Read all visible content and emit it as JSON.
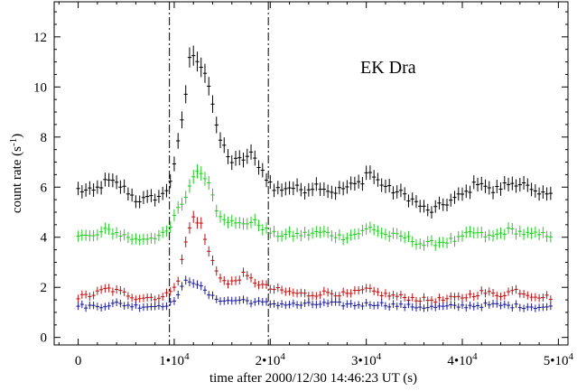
{
  "chart_data": {
    "type": "scatter",
    "title": "EK Dra",
    "xlabel": "time after 2000/12/30 14:46:23 UT (s)",
    "ylabel": "count rate (s",
    "ylabel_sup": "-1",
    "ylabel_close": ")",
    "xlim": [
      -2500,
      51000
    ],
    "ylim": [
      -0.3,
      13.4
    ],
    "x_ticks": [
      0,
      10000,
      20000,
      30000,
      40000,
      50000
    ],
    "x_tick_labels": [
      {
        "base": "0",
        "sup": ""
      },
      {
        "base": "1•10",
        "sup": "4"
      },
      {
        "base": "2•10",
        "sup": "4"
      },
      {
        "base": "3•10",
        "sup": "4"
      },
      {
        "base": "4•10",
        "sup": "4"
      },
      {
        "base": "5•10",
        "sup": "4"
      }
    ],
    "y_ticks": [
      0,
      2,
      4,
      6,
      8,
      10,
      12
    ],
    "y_tick_labels": [
      "0",
      "2",
      "4",
      "6",
      "8",
      "10",
      "12"
    ],
    "vlines": [
      9500,
      19800
    ],
    "x_step": 400,
    "x_start": 0,
    "x_end": 49200,
    "colors": {
      "total": "#000000",
      "medium": "#22cc22",
      "soft": "#bb1111",
      "hard": "#1a1a99"
    },
    "series": [
      {
        "key": "total",
        "keypoints": [
          [
            0,
            5.9
          ],
          [
            1500,
            5.8
          ],
          [
            3000,
            6.25
          ],
          [
            4200,
            6.1
          ],
          [
            5000,
            5.9
          ],
          [
            6000,
            5.5
          ],
          [
            7000,
            5.5
          ],
          [
            8000,
            5.6
          ],
          [
            9000,
            5.7
          ],
          [
            9600,
            6.3
          ],
          [
            10200,
            7.3
          ],
          [
            11000,
            9.0
          ],
          [
            11600,
            11.2
          ],
          [
            12500,
            11.1
          ],
          [
            13200,
            10.6
          ],
          [
            13800,
            9.8
          ],
          [
            14500,
            8.1
          ],
          [
            15200,
            7.6
          ],
          [
            16000,
            7.0
          ],
          [
            17000,
            7.1
          ],
          [
            18000,
            7.3
          ],
          [
            18800,
            6.9
          ],
          [
            19600,
            6.4
          ],
          [
            20400,
            5.9
          ],
          [
            22000,
            6.0
          ],
          [
            23500,
            5.9
          ],
          [
            25000,
            6.1
          ],
          [
            26500,
            5.8
          ],
          [
            28000,
            6.0
          ],
          [
            29500,
            6.2
          ],
          [
            30200,
            6.7
          ],
          [
            31000,
            6.3
          ],
          [
            32500,
            5.9
          ],
          [
            34000,
            5.7
          ],
          [
            35500,
            5.3
          ],
          [
            36500,
            5.0
          ],
          [
            37500,
            5.2
          ],
          [
            39000,
            5.5
          ],
          [
            40500,
            5.8
          ],
          [
            41800,
            6.3
          ],
          [
            43000,
            5.8
          ],
          [
            44500,
            6.1
          ],
          [
            45500,
            6.2
          ],
          [
            46500,
            6.1
          ],
          [
            47500,
            5.7
          ],
          [
            48500,
            5.7
          ],
          [
            49200,
            5.9
          ]
        ]
      },
      {
        "key": "medium",
        "keypoints": [
          [
            0,
            4.1
          ],
          [
            1500,
            4.0
          ],
          [
            3000,
            4.3
          ],
          [
            4500,
            4.1
          ],
          [
            6000,
            3.9
          ],
          [
            7500,
            4.0
          ],
          [
            9000,
            4.1
          ],
          [
            9600,
            4.4
          ],
          [
            10200,
            5.0
          ],
          [
            11200,
            5.6
          ],
          [
            12000,
            6.5
          ],
          [
            13000,
            6.6
          ],
          [
            13800,
            6.0
          ],
          [
            14500,
            5.0
          ],
          [
            15500,
            4.7
          ],
          [
            16500,
            4.5
          ],
          [
            17500,
            4.6
          ],
          [
            18500,
            4.6
          ],
          [
            19500,
            4.3
          ],
          [
            20500,
            4.1
          ],
          [
            23000,
            4.1
          ],
          [
            25500,
            4.2
          ],
          [
            27500,
            4.0
          ],
          [
            29500,
            4.2
          ],
          [
            30500,
            4.4
          ],
          [
            32000,
            4.1
          ],
          [
            34000,
            4.0
          ],
          [
            36000,
            3.7
          ],
          [
            37500,
            3.8
          ],
          [
            39500,
            3.9
          ],
          [
            41000,
            4.2
          ],
          [
            43000,
            4.0
          ],
          [
            45000,
            4.3
          ],
          [
            47000,
            4.1
          ],
          [
            49200,
            4.1
          ]
        ]
      },
      {
        "key": "soft",
        "keypoints": [
          [
            0,
            1.6
          ],
          [
            1500,
            1.7
          ],
          [
            3000,
            1.95
          ],
          [
            4500,
            1.8
          ],
          [
            6000,
            1.6
          ],
          [
            7500,
            1.6
          ],
          [
            9000,
            1.6
          ],
          [
            9600,
            1.9
          ],
          [
            10400,
            2.3
          ],
          [
            11300,
            4.0
          ],
          [
            12000,
            4.8
          ],
          [
            12800,
            4.5
          ],
          [
            13500,
            3.5
          ],
          [
            14500,
            2.6
          ],
          [
            15500,
            2.1
          ],
          [
            16500,
            2.3
          ],
          [
            17200,
            2.5
          ],
          [
            18500,
            2.2
          ],
          [
            20000,
            1.95
          ],
          [
            22000,
            1.8
          ],
          [
            24000,
            1.7
          ],
          [
            26000,
            1.8
          ],
          [
            28000,
            1.7
          ],
          [
            30000,
            1.9
          ],
          [
            32000,
            1.7
          ],
          [
            34000,
            1.6
          ],
          [
            36000,
            1.5
          ],
          [
            38000,
            1.5
          ],
          [
            40000,
            1.6
          ],
          [
            42000,
            1.8
          ],
          [
            44000,
            1.7
          ],
          [
            45500,
            1.9
          ],
          [
            47000,
            1.7
          ],
          [
            49200,
            1.6
          ]
        ]
      },
      {
        "key": "hard",
        "keypoints": [
          [
            0,
            1.25
          ],
          [
            2000,
            1.25
          ],
          [
            4000,
            1.35
          ],
          [
            6000,
            1.25
          ],
          [
            8000,
            1.25
          ],
          [
            9600,
            1.35
          ],
          [
            10400,
            1.7
          ],
          [
            11300,
            2.3
          ],
          [
            12300,
            2.2
          ],
          [
            13000,
            1.9
          ],
          [
            14000,
            1.6
          ],
          [
            15500,
            1.45
          ],
          [
            17000,
            1.5
          ],
          [
            18500,
            1.4
          ],
          [
            20000,
            1.35
          ],
          [
            23000,
            1.3
          ],
          [
            26000,
            1.35
          ],
          [
            29000,
            1.3
          ],
          [
            31000,
            1.35
          ],
          [
            34000,
            1.25
          ],
          [
            37000,
            1.2
          ],
          [
            40000,
            1.25
          ],
          [
            43000,
            1.3
          ],
          [
            46000,
            1.25
          ],
          [
            49200,
            1.2
          ]
        ]
      }
    ]
  }
}
